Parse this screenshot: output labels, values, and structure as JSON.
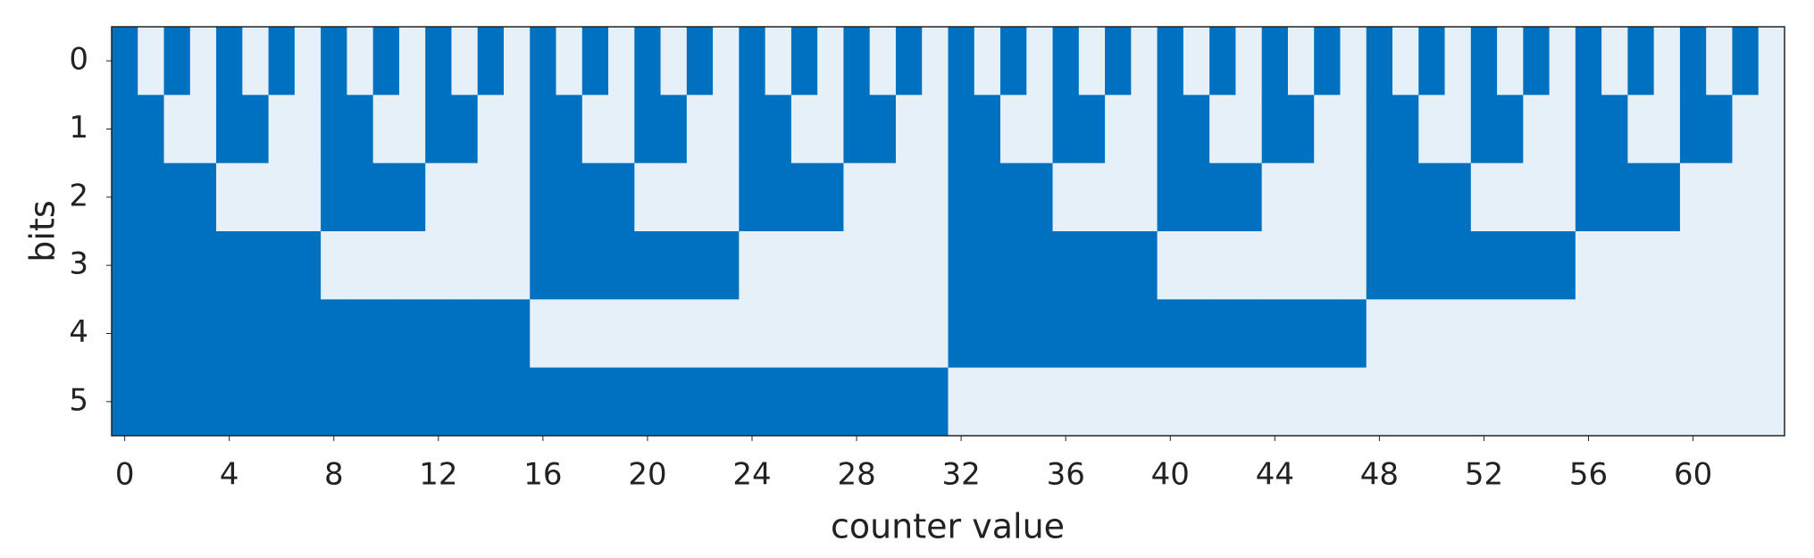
{
  "chart_data": {
    "type": "heatmap",
    "x_label": "counter value",
    "y_label": "bits",
    "xlim": [
      -0.5,
      63.5
    ],
    "ylim": [
      -0.5,
      5.5
    ],
    "xticks": [
      0,
      4,
      8,
      12,
      16,
      20,
      24,
      28,
      32,
      36,
      40,
      44,
      48,
      52,
      56,
      60
    ],
    "yticks": [
      0,
      1,
      2,
      3,
      4,
      5
    ],
    "colors": [
      "#0070c0",
      "#e6f0f8"
    ],
    "z": [
      [
        0,
        1,
        0,
        1,
        0,
        1,
        0,
        1,
        0,
        1,
        0,
        1,
        0,
        1,
        0,
        1,
        0,
        1,
        0,
        1,
        0,
        1,
        0,
        1,
        0,
        1,
        0,
        1,
        0,
        1,
        0,
        1,
        0,
        1,
        0,
        1,
        0,
        1,
        0,
        1,
        0,
        1,
        0,
        1,
        0,
        1,
        0,
        1,
        0,
        1,
        0,
        1,
        0,
        1,
        0,
        1,
        0,
        1,
        0,
        1,
        0,
        1,
        0,
        1
      ],
      [
        0,
        0,
        1,
        1,
        0,
        0,
        1,
        1,
        0,
        0,
        1,
        1,
        0,
        0,
        1,
        1,
        0,
        0,
        1,
        1,
        0,
        0,
        1,
        1,
        0,
        0,
        1,
        1,
        0,
        0,
        1,
        1,
        0,
        0,
        1,
        1,
        0,
        0,
        1,
        1,
        0,
        0,
        1,
        1,
        0,
        0,
        1,
        1,
        0,
        0,
        1,
        1,
        0,
        0,
        1,
        1,
        0,
        0,
        1,
        1,
        0,
        0,
        1,
        1
      ],
      [
        0,
        0,
        0,
        0,
        1,
        1,
        1,
        1,
        0,
        0,
        0,
        0,
        1,
        1,
        1,
        1,
        0,
        0,
        0,
        0,
        1,
        1,
        1,
        1,
        0,
        0,
        0,
        0,
        1,
        1,
        1,
        1,
        0,
        0,
        0,
        0,
        1,
        1,
        1,
        1,
        0,
        0,
        0,
        0,
        1,
        1,
        1,
        1,
        0,
        0,
        0,
        0,
        1,
        1,
        1,
        1,
        0,
        0,
        0,
        0,
        1,
        1,
        1,
        1
      ],
      [
        0,
        0,
        0,
        0,
        0,
        0,
        0,
        0,
        1,
        1,
        1,
        1,
        1,
        1,
        1,
        1,
        0,
        0,
        0,
        0,
        0,
        0,
        0,
        0,
        1,
        1,
        1,
        1,
        1,
        1,
        1,
        1,
        0,
        0,
        0,
        0,
        0,
        0,
        0,
        0,
        1,
        1,
        1,
        1,
        1,
        1,
        1,
        1,
        0,
        0,
        0,
        0,
        0,
        0,
        0,
        0,
        1,
        1,
        1,
        1,
        1,
        1,
        1,
        1
      ],
      [
        0,
        0,
        0,
        0,
        0,
        0,
        0,
        0,
        0,
        0,
        0,
        0,
        0,
        0,
        0,
        0,
        1,
        1,
        1,
        1,
        1,
        1,
        1,
        1,
        1,
        1,
        1,
        1,
        1,
        1,
        1,
        1,
        0,
        0,
        0,
        0,
        0,
        0,
        0,
        0,
        0,
        0,
        0,
        0,
        0,
        0,
        0,
        0,
        1,
        1,
        1,
        1,
        1,
        1,
        1,
        1,
        1,
        1,
        1,
        1,
        1,
        1,
        1,
        1
      ],
      [
        0,
        0,
        0,
        0,
        0,
        0,
        0,
        0,
        0,
        0,
        0,
        0,
        0,
        0,
        0,
        0,
        0,
        0,
        0,
        0,
        0,
        0,
        0,
        0,
        0,
        0,
        0,
        0,
        0,
        0,
        0,
        0,
        1,
        1,
        1,
        1,
        1,
        1,
        1,
        1,
        1,
        1,
        1,
        1,
        1,
        1,
        1,
        1,
        1,
        1,
        1,
        1,
        1,
        1,
        1,
        1,
        1,
        1,
        1,
        1,
        1,
        1,
        1,
        1
      ]
    ]
  }
}
